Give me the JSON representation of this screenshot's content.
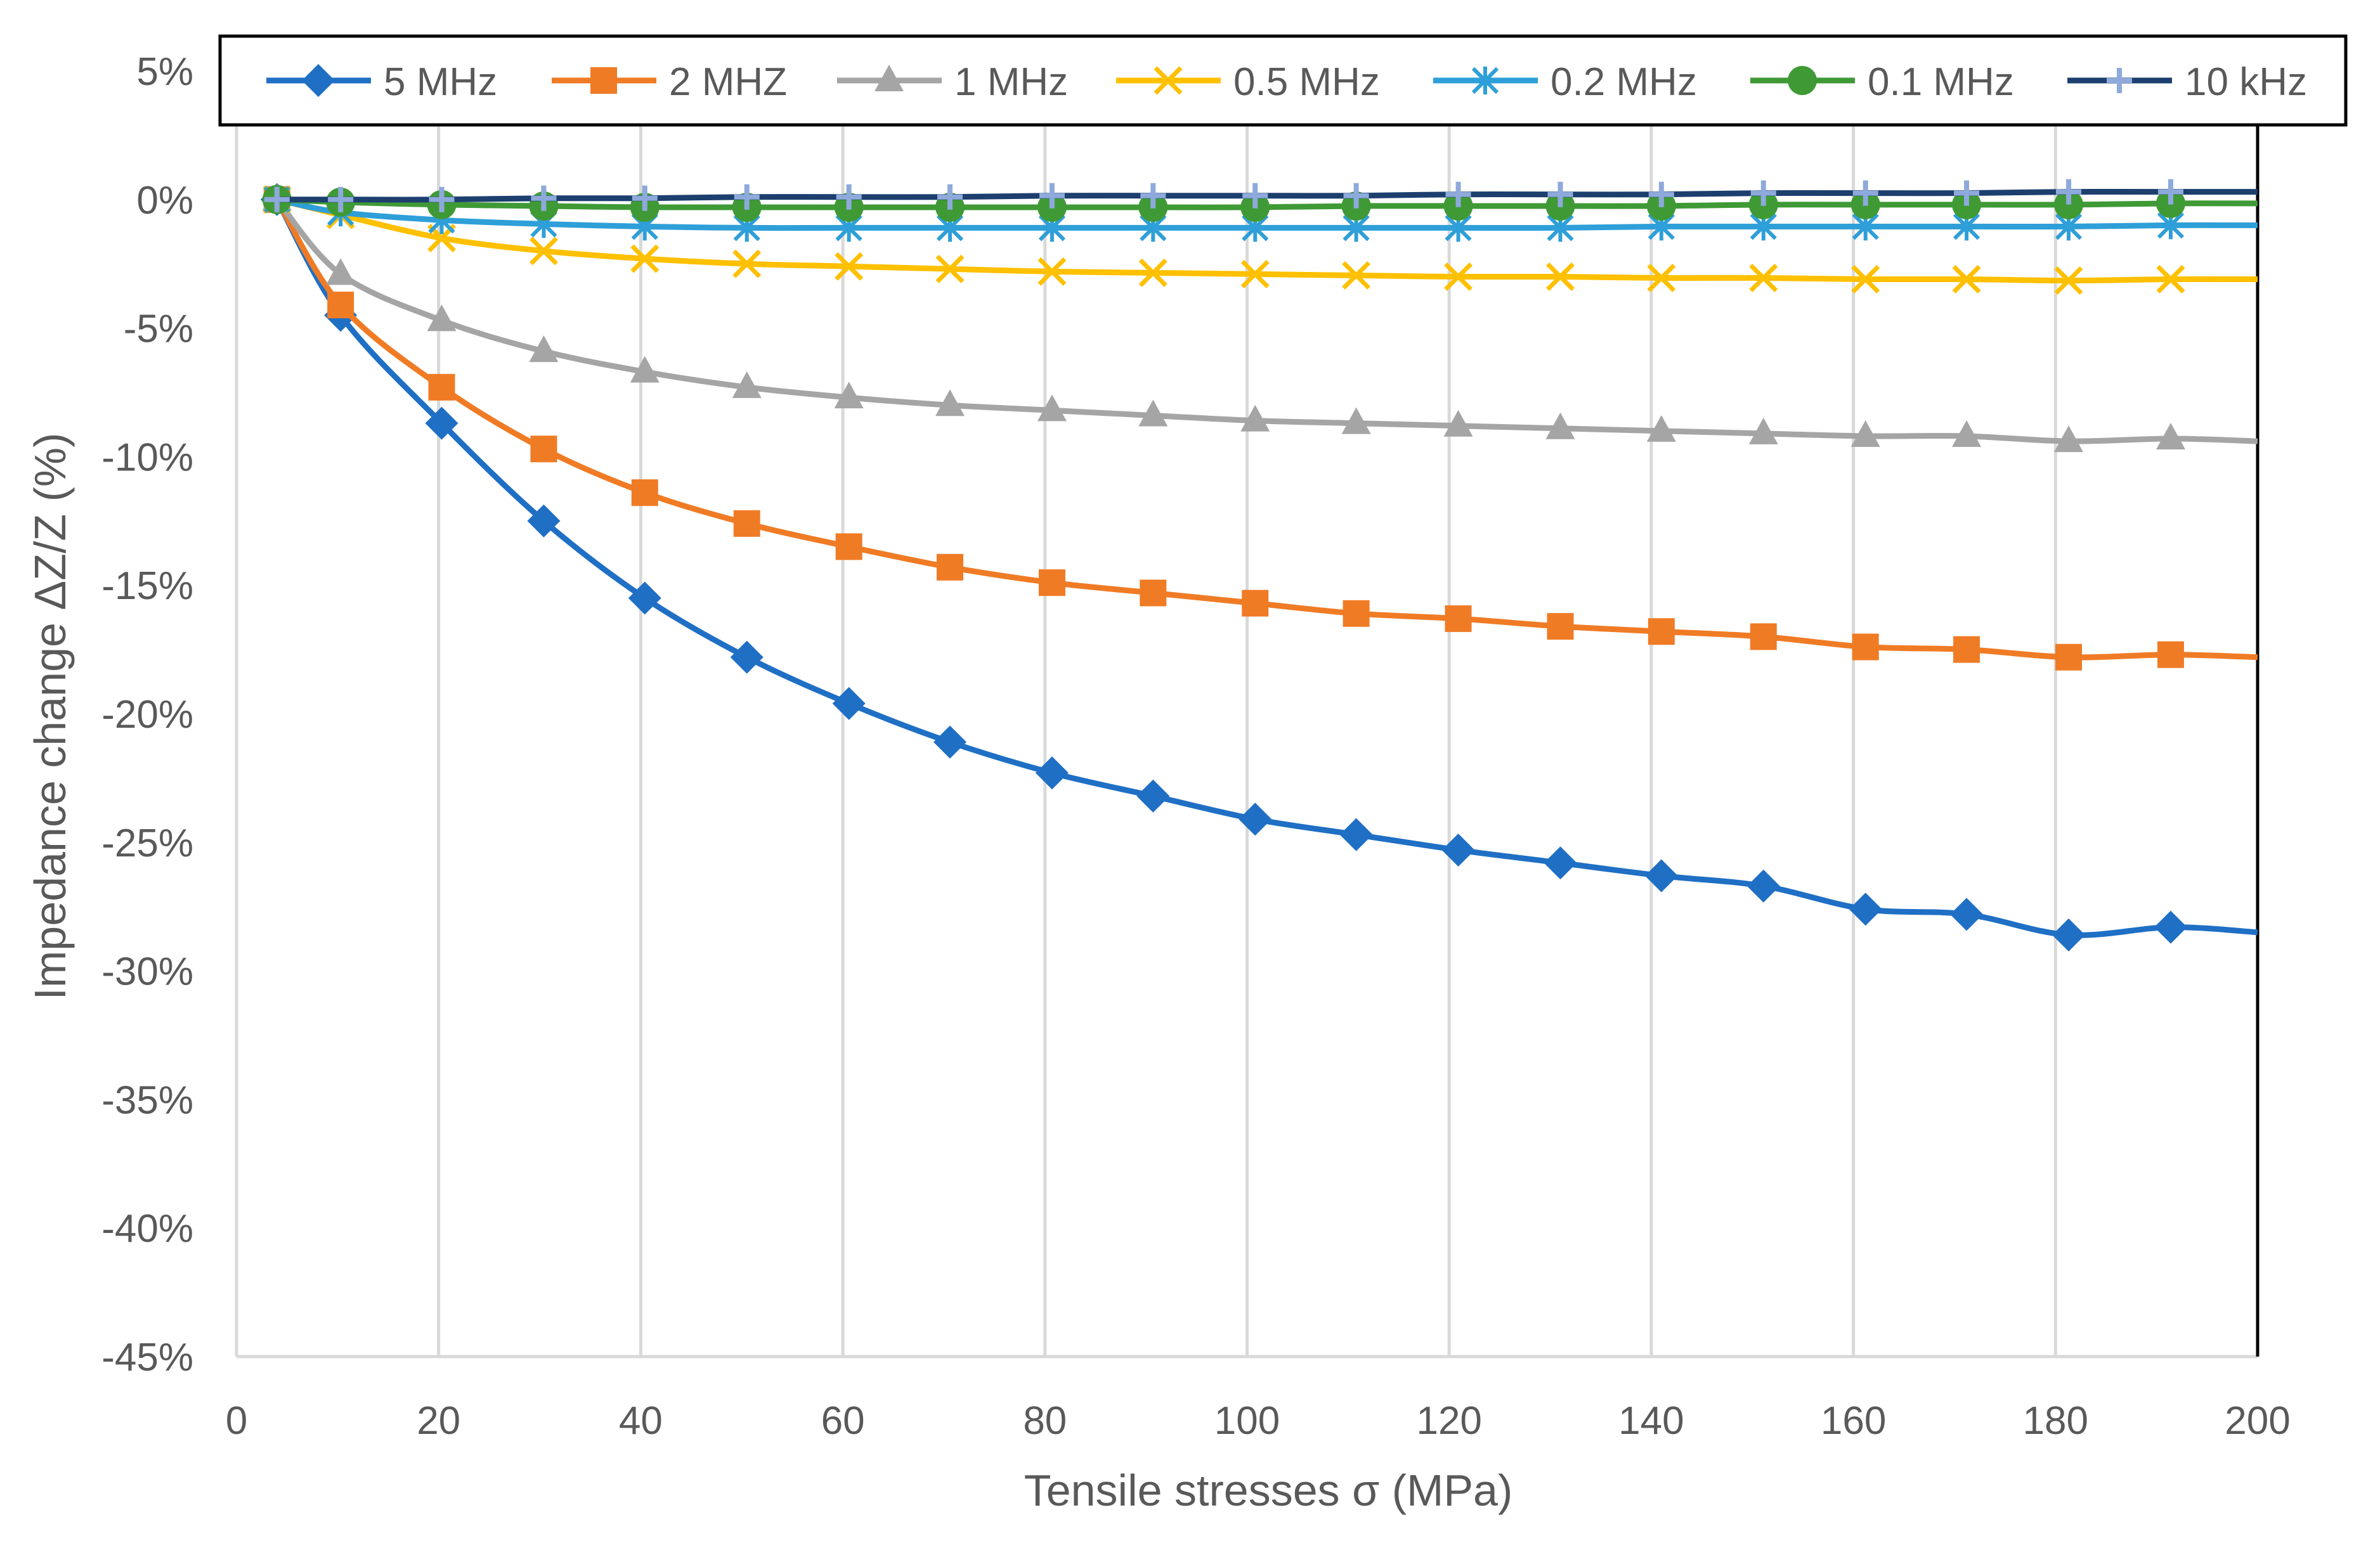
{
  "chart_data": {
    "type": "line",
    "title": "",
    "xlabel": "Tensile stresses σ (MPa)",
    "ylabel": "Impedance change ΔZ/Z (%)",
    "xlim": [
      0,
      200
    ],
    "ylim": [
      -45,
      5
    ],
    "x_ticks": [
      0,
      20,
      40,
      60,
      80,
      100,
      120,
      140,
      160,
      180,
      200
    ],
    "y_ticks": [
      5,
      0,
      -5,
      -10,
      -15,
      -20,
      -25,
      -30,
      -35,
      -40,
      -45
    ],
    "x_tick_labels": [
      "0",
      "20",
      "40",
      "60",
      "80",
      "100",
      "120",
      "140",
      "160",
      "180",
      "200"
    ],
    "y_tick_labels": [
      "5%",
      "0%",
      "-5%",
      "-10%",
      "-15%",
      "-20%",
      "-25%",
      "-30%",
      "-35%",
      "-40%",
      "-45%"
    ],
    "grid": "vertical",
    "legend_position": "top",
    "x": [
      4,
      10.3,
      20.3,
      30.4,
      40.4,
      50.5,
      60.6,
      70.6,
      80.7,
      90.7,
      100.8,
      110.8,
      120.9,
      131,
      141,
      151.1,
      161.2,
      171.2,
      181.3,
      191.4
    ],
    "x_end": 200,
    "series": [
      {
        "name": "5 MHz",
        "color": "#1F6FC5",
        "marker": "diamond",
        "values": [
          0,
          -4.5,
          -8.7,
          -12.5,
          -15.5,
          -17.8,
          -19.6,
          -21.1,
          -22.3,
          -23.2,
          -24.1,
          -24.7,
          -25.3,
          -25.8,
          -26.3,
          -26.7,
          -27.6,
          -27.8,
          -28.6,
          -28.3
        ],
        "end_value": -28.5
      },
      {
        "name": "2 MHZ",
        "color": "#F07B25",
        "marker": "square",
        "values": [
          0,
          -4.1,
          -7.3,
          -9.7,
          -11.4,
          -12.6,
          -13.5,
          -14.3,
          -14.9,
          -15.3,
          -15.7,
          -16.1,
          -16.3,
          -16.6,
          -16.8,
          -17.0,
          -17.4,
          -17.5,
          -17.8,
          -17.7
        ],
        "end_value": -17.8
      },
      {
        "name": "1 MHz",
        "color": "#A5A5A5",
        "marker": "triangle",
        "values": [
          0,
          -2.9,
          -4.7,
          -5.9,
          -6.7,
          -7.3,
          -7.7,
          -8.0,
          -8.2,
          -8.4,
          -8.6,
          -8.7,
          -8.8,
          -8.9,
          -9.0,
          -9.1,
          -9.2,
          -9.2,
          -9.4,
          -9.3
        ],
        "end_value": -9.4
      },
      {
        "name": "0.5 MHz",
        "color": "#FFC000",
        "marker": "x",
        "values": [
          0,
          -0.6,
          -1.5,
          -2.0,
          -2.3,
          -2.5,
          -2.6,
          -2.7,
          -2.8,
          -2.85,
          -2.9,
          -2.95,
          -3.0,
          -3.0,
          -3.05,
          -3.05,
          -3.1,
          -3.1,
          -3.15,
          -3.1
        ],
        "end_value": -3.1
      },
      {
        "name": "0.2 MHz",
        "color": "#2E9FD8",
        "marker": "asterisk",
        "values": [
          0,
          -0.5,
          -0.8,
          -0.95,
          -1.05,
          -1.1,
          -1.1,
          -1.1,
          -1.1,
          -1.1,
          -1.1,
          -1.1,
          -1.1,
          -1.1,
          -1.05,
          -1.05,
          -1.05,
          -1.05,
          -1.05,
          -1.0
        ],
        "end_value": -1.0
      },
      {
        "name": "0.1 MHz",
        "color": "#3F9A36",
        "marker": "circle",
        "values": [
          0,
          -0.1,
          -0.2,
          -0.25,
          -0.3,
          -0.3,
          -0.3,
          -0.3,
          -0.3,
          -0.3,
          -0.3,
          -0.25,
          -0.25,
          -0.25,
          -0.25,
          -0.2,
          -0.2,
          -0.2,
          -0.2,
          -0.15
        ],
        "end_value": -0.15
      },
      {
        "name": "10 kHz",
        "color": "#1C3F6E",
        "marker": "plus",
        "values": [
          0,
          0,
          0,
          0.05,
          0.05,
          0.1,
          0.1,
          0.1,
          0.15,
          0.15,
          0.15,
          0.15,
          0.2,
          0.2,
          0.2,
          0.25,
          0.25,
          0.25,
          0.3,
          0.3
        ],
        "end_value": 0.3
      }
    ]
  },
  "style": {
    "axis_text_color": "#595959",
    "grid_color": "#D9D9D9",
    "frame_color": "#000000",
    "plus_marker_fill": "#8EA9DB"
  }
}
